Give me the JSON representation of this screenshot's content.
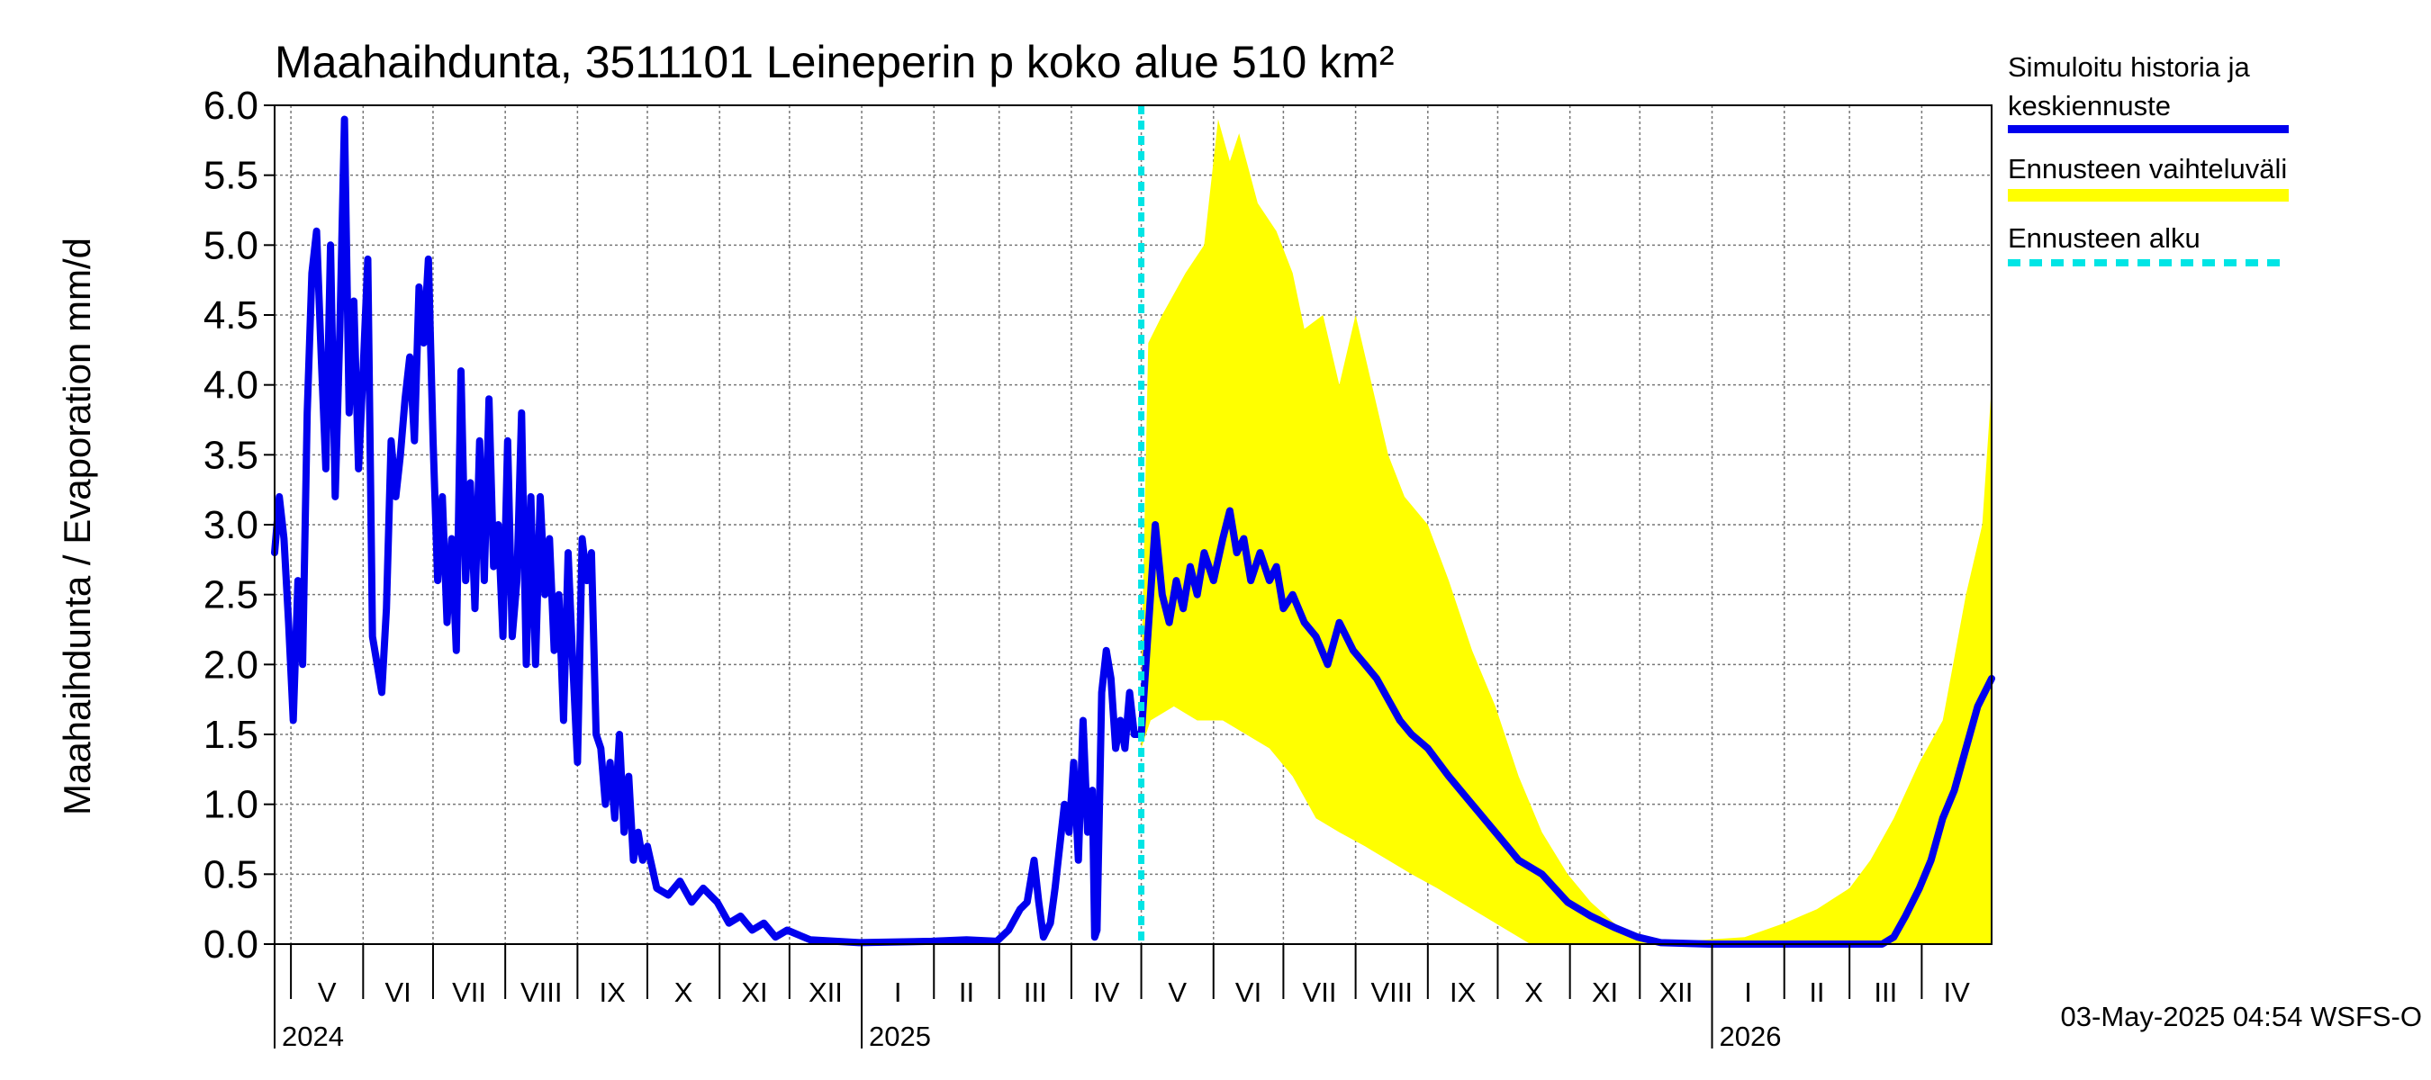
{
  "chart_data": {
    "type": "line",
    "title": "Maahaihdunta, 3511101 Leineperin p koko alue 510 km²",
    "ylabel": "Maahaihdunta / Evaporation   mm/d",
    "ylim": [
      0,
      6
    ],
    "yticks": [
      "0.0",
      "0.5",
      "1.0",
      "1.5",
      "2.0",
      "2.5",
      "3.0",
      "3.5",
      "4.0",
      "4.5",
      "5.0",
      "5.5",
      "6.0"
    ],
    "xlim": [
      "2024-04-24",
      "2026-05-01"
    ],
    "month_labels": [
      {
        "label": "V",
        "start": "2024-05-01"
      },
      {
        "label": "VI",
        "start": "2024-06-01"
      },
      {
        "label": "VII",
        "start": "2024-07-01"
      },
      {
        "label": "VIII",
        "start": "2024-08-01"
      },
      {
        "label": "IX",
        "start": "2024-09-01"
      },
      {
        "label": "X",
        "start": "2024-10-01"
      },
      {
        "label": "XI",
        "start": "2024-11-01"
      },
      {
        "label": "XII",
        "start": "2024-12-01"
      },
      {
        "label": "I",
        "start": "2025-01-01"
      },
      {
        "label": "II",
        "start": "2025-02-01"
      },
      {
        "label": "III",
        "start": "2025-03-01"
      },
      {
        "label": "IV",
        "start": "2025-04-01"
      },
      {
        "label": "V",
        "start": "2025-05-01"
      },
      {
        "label": "VI",
        "start": "2025-06-01"
      },
      {
        "label": "VII",
        "start": "2025-07-01"
      },
      {
        "label": "VIII",
        "start": "2025-08-01"
      },
      {
        "label": "IX",
        "start": "2025-09-01"
      },
      {
        "label": "X",
        "start": "2025-10-01"
      },
      {
        "label": "XI",
        "start": "2025-11-01"
      },
      {
        "label": "XII",
        "start": "2025-12-01"
      },
      {
        "label": "I",
        "start": "2026-01-01"
      },
      {
        "label": "II",
        "start": "2026-02-01"
      },
      {
        "label": "III",
        "start": "2026-03-01"
      },
      {
        "label": "IV",
        "start": "2026-04-01"
      }
    ],
    "year_labels": [
      {
        "label": "2024",
        "date": "2024-04-24"
      },
      {
        "label": "2025",
        "date": "2025-01-01"
      },
      {
        "label": "2026",
        "date": "2026-01-01"
      }
    ],
    "forecast_start": "2025-05-01",
    "grid": true,
    "legend_position": "right",
    "series": [
      {
        "name": "Simuloitu historia ja keskiennuste",
        "color": "#0000ee",
        "points": [
          [
            "2024-04-24",
            2.8
          ],
          [
            "2024-04-26",
            3.2
          ],
          [
            "2024-04-28",
            2.9
          ],
          [
            "2024-04-30",
            2.3
          ],
          [
            "2024-05-02",
            1.6
          ],
          [
            "2024-05-04",
            2.6
          ],
          [
            "2024-05-06",
            2.0
          ],
          [
            "2024-05-08",
            3.8
          ],
          [
            "2024-05-10",
            4.8
          ],
          [
            "2024-05-12",
            5.1
          ],
          [
            "2024-05-14",
            4.2
          ],
          [
            "2024-05-16",
            3.4
          ],
          [
            "2024-05-18",
            5.0
          ],
          [
            "2024-05-20",
            3.2
          ],
          [
            "2024-05-22",
            4.4
          ],
          [
            "2024-05-24",
            5.9
          ],
          [
            "2024-05-26",
            3.8
          ],
          [
            "2024-05-28",
            4.6
          ],
          [
            "2024-05-30",
            3.4
          ],
          [
            "2024-06-01",
            4.1
          ],
          [
            "2024-06-03",
            4.9
          ],
          [
            "2024-06-05",
            2.2
          ],
          [
            "2024-06-07",
            2.0
          ],
          [
            "2024-06-09",
            1.8
          ],
          [
            "2024-06-11",
            2.4
          ],
          [
            "2024-06-13",
            3.6
          ],
          [
            "2024-06-15",
            3.2
          ],
          [
            "2024-06-17",
            3.5
          ],
          [
            "2024-06-19",
            3.9
          ],
          [
            "2024-06-21",
            4.2
          ],
          [
            "2024-06-23",
            3.6
          ],
          [
            "2024-06-25",
            4.7
          ],
          [
            "2024-06-27",
            4.3
          ],
          [
            "2024-06-29",
            4.9
          ],
          [
            "2024-07-01",
            3.6
          ],
          [
            "2024-07-03",
            2.6
          ],
          [
            "2024-07-05",
            3.2
          ],
          [
            "2024-07-07",
            2.3
          ],
          [
            "2024-07-09",
            2.9
          ],
          [
            "2024-07-11",
            2.1
          ],
          [
            "2024-07-13",
            4.1
          ],
          [
            "2024-07-15",
            2.6
          ],
          [
            "2024-07-17",
            3.3
          ],
          [
            "2024-07-19",
            2.4
          ],
          [
            "2024-07-21",
            3.6
          ],
          [
            "2024-07-23",
            2.6
          ],
          [
            "2024-07-25",
            3.9
          ],
          [
            "2024-07-27",
            2.7
          ],
          [
            "2024-07-29",
            3.0
          ],
          [
            "2024-07-31",
            2.2
          ],
          [
            "2024-08-02",
            3.6
          ],
          [
            "2024-08-04",
            2.2
          ],
          [
            "2024-08-06",
            2.6
          ],
          [
            "2024-08-08",
            3.8
          ],
          [
            "2024-08-10",
            2.0
          ],
          [
            "2024-08-12",
            3.2
          ],
          [
            "2024-08-14",
            2.0
          ],
          [
            "2024-08-16",
            3.2
          ],
          [
            "2024-08-18",
            2.5
          ],
          [
            "2024-08-20",
            2.9
          ],
          [
            "2024-08-22",
            2.1
          ],
          [
            "2024-08-24",
            2.5
          ],
          [
            "2024-08-26",
            1.6
          ],
          [
            "2024-08-28",
            2.8
          ],
          [
            "2024-08-30",
            2.0
          ],
          [
            "2024-09-01",
            1.3
          ],
          [
            "2024-09-03",
            2.9
          ],
          [
            "2024-09-05",
            2.6
          ],
          [
            "2024-09-07",
            2.8
          ],
          [
            "2024-09-09",
            1.5
          ],
          [
            "2024-09-11",
            1.4
          ],
          [
            "2024-09-13",
            1.0
          ],
          [
            "2024-09-15",
            1.3
          ],
          [
            "2024-09-17",
            0.9
          ],
          [
            "2024-09-19",
            1.5
          ],
          [
            "2024-09-21",
            0.8
          ],
          [
            "2024-09-23",
            1.2
          ],
          [
            "2024-09-25",
            0.6
          ],
          [
            "2024-09-27",
            0.8
          ],
          [
            "2024-09-29",
            0.6
          ],
          [
            "2024-10-01",
            0.7
          ],
          [
            "2024-10-05",
            0.4
          ],
          [
            "2024-10-10",
            0.35
          ],
          [
            "2024-10-15",
            0.45
          ],
          [
            "2024-10-20",
            0.3
          ],
          [
            "2024-10-25",
            0.4
          ],
          [
            "2024-10-31",
            0.3
          ],
          [
            "2024-11-05",
            0.15
          ],
          [
            "2024-11-10",
            0.2
          ],
          [
            "2024-11-15",
            0.1
          ],
          [
            "2024-11-20",
            0.15
          ],
          [
            "2024-11-25",
            0.05
          ],
          [
            "2024-11-30",
            0.1
          ],
          [
            "2024-12-10",
            0.03
          ],
          [
            "2024-12-31",
            0.01
          ],
          [
            "2025-01-31",
            0.02
          ],
          [
            "2025-02-15",
            0.03
          ],
          [
            "2025-02-28",
            0.02
          ],
          [
            "2025-03-05",
            0.1
          ],
          [
            "2025-03-10",
            0.25
          ],
          [
            "2025-03-13",
            0.3
          ],
          [
            "2025-03-16",
            0.6
          ],
          [
            "2025-03-18",
            0.3
          ],
          [
            "2025-03-20",
            0.05
          ],
          [
            "2025-03-23",
            0.15
          ],
          [
            "2025-03-25",
            0.4
          ],
          [
            "2025-03-27",
            0.7
          ],
          [
            "2025-03-29",
            1.0
          ],
          [
            "2025-03-31",
            0.8
          ],
          [
            "2025-04-02",
            1.3
          ],
          [
            "2025-04-04",
            0.6
          ],
          [
            "2025-04-06",
            1.6
          ],
          [
            "2025-04-08",
            0.8
          ],
          [
            "2025-04-10",
            1.1
          ],
          [
            "2025-04-11",
            0.05
          ],
          [
            "2025-04-12",
            0.1
          ],
          [
            "2025-04-14",
            1.8
          ],
          [
            "2025-04-16",
            2.1
          ],
          [
            "2025-04-18",
            1.9
          ],
          [
            "2025-04-20",
            1.4
          ],
          [
            "2025-04-22",
            1.6
          ],
          [
            "2025-04-24",
            1.4
          ],
          [
            "2025-04-26",
            1.8
          ],
          [
            "2025-04-28",
            1.5
          ],
          [
            "2025-05-01",
            1.5
          ]
        ]
      },
      {
        "name": "Keskiennuste",
        "color": "#0000ee",
        "points": [
          [
            "2025-05-01",
            1.5
          ],
          [
            "2025-05-03",
            2.0
          ],
          [
            "2025-05-05",
            2.5
          ],
          [
            "2025-05-07",
            3.0
          ],
          [
            "2025-05-10",
            2.5
          ],
          [
            "2025-05-13",
            2.3
          ],
          [
            "2025-05-16",
            2.6
          ],
          [
            "2025-05-19",
            2.4
          ],
          [
            "2025-05-22",
            2.7
          ],
          [
            "2025-05-25",
            2.5
          ],
          [
            "2025-05-28",
            2.8
          ],
          [
            "2025-06-01",
            2.6
          ],
          [
            "2025-06-05",
            2.9
          ],
          [
            "2025-06-08",
            3.1
          ],
          [
            "2025-06-11",
            2.8
          ],
          [
            "2025-06-14",
            2.9
          ],
          [
            "2025-06-17",
            2.6
          ],
          [
            "2025-06-21",
            2.8
          ],
          [
            "2025-06-25",
            2.6
          ],
          [
            "2025-06-28",
            2.7
          ],
          [
            "2025-07-01",
            2.4
          ],
          [
            "2025-07-05",
            2.5
          ],
          [
            "2025-07-10",
            2.3
          ],
          [
            "2025-07-15",
            2.2
          ],
          [
            "2025-07-20",
            2.0
          ],
          [
            "2025-07-25",
            2.3
          ],
          [
            "2025-07-31",
            2.1
          ],
          [
            "2025-08-05",
            2.0
          ],
          [
            "2025-08-10",
            1.9
          ],
          [
            "2025-08-15",
            1.75
          ],
          [
            "2025-08-20",
            1.6
          ],
          [
            "2025-08-25",
            1.5
          ],
          [
            "2025-09-01",
            1.4
          ],
          [
            "2025-09-10",
            1.2
          ],
          [
            "2025-09-20",
            1.0
          ],
          [
            "2025-09-30",
            0.8
          ],
          [
            "2025-10-10",
            0.6
          ],
          [
            "2025-10-20",
            0.5
          ],
          [
            "2025-10-31",
            0.3
          ],
          [
            "2025-11-10",
            0.2
          ],
          [
            "2025-11-20",
            0.12
          ],
          [
            "2025-11-30",
            0.05
          ],
          [
            "2025-12-10",
            0.01
          ],
          [
            "2025-12-31",
            0.0
          ],
          [
            "2026-02-28",
            0.0
          ],
          [
            "2026-03-15",
            0.0
          ],
          [
            "2026-03-20",
            0.05
          ],
          [
            "2026-03-25",
            0.2
          ],
          [
            "2026-03-31",
            0.4
          ],
          [
            "2026-04-05",
            0.6
          ],
          [
            "2026-04-10",
            0.9
          ],
          [
            "2026-04-15",
            1.1
          ],
          [
            "2026-04-20",
            1.4
          ],
          [
            "2026-04-25",
            1.7
          ],
          [
            "2026-05-01",
            1.9
          ]
        ]
      }
    ],
    "band": {
      "name": "Ennusteen vaihteluväli",
      "color": "#ffff00",
      "upper": [
        [
          "2025-05-01",
          1.9
        ],
        [
          "2025-05-04",
          4.3
        ],
        [
          "2025-05-10",
          4.5
        ],
        [
          "2025-05-20",
          4.8
        ],
        [
          "2025-05-28",
          5.0
        ],
        [
          "2025-06-03",
          5.9
        ],
        [
          "2025-06-08",
          5.6
        ],
        [
          "2025-06-12",
          5.8
        ],
        [
          "2025-06-20",
          5.3
        ],
        [
          "2025-06-28",
          5.1
        ],
        [
          "2025-07-05",
          4.8
        ],
        [
          "2025-07-10",
          4.4
        ],
        [
          "2025-07-18",
          4.5
        ],
        [
          "2025-07-25",
          4.0
        ],
        [
          "2025-08-01",
          4.5
        ],
        [
          "2025-08-08",
          4.0
        ],
        [
          "2025-08-15",
          3.5
        ],
        [
          "2025-08-22",
          3.2
        ],
        [
          "2025-09-01",
          3.0
        ],
        [
          "2025-09-10",
          2.6
        ],
        [
          "2025-09-20",
          2.1
        ],
        [
          "2025-09-30",
          1.7
        ],
        [
          "2025-10-10",
          1.2
        ],
        [
          "2025-10-20",
          0.8
        ],
        [
          "2025-10-31",
          0.5
        ],
        [
          "2025-11-10",
          0.3
        ],
        [
          "2025-11-20",
          0.15
        ],
        [
          "2025-11-30",
          0.05
        ],
        [
          "2025-12-20",
          0.02
        ],
        [
          "2026-01-15",
          0.05
        ],
        [
          "2026-02-01",
          0.15
        ],
        [
          "2026-02-15",
          0.25
        ],
        [
          "2026-03-01",
          0.4
        ],
        [
          "2026-03-10",
          0.6
        ],
        [
          "2026-03-20",
          0.9
        ],
        [
          "2026-03-31",
          1.3
        ],
        [
          "2026-04-10",
          1.6
        ],
        [
          "2026-04-20",
          2.5
        ],
        [
          "2026-04-27",
          3.0
        ],
        [
          "2026-05-01",
          4.0
        ]
      ],
      "lower": [
        [
          "2025-05-01",
          1.4
        ],
        [
          "2025-05-05",
          1.6
        ],
        [
          "2025-05-15",
          1.7
        ],
        [
          "2025-05-25",
          1.6
        ],
        [
          "2025-06-05",
          1.6
        ],
        [
          "2025-06-15",
          1.5
        ],
        [
          "2025-06-25",
          1.4
        ],
        [
          "2025-07-05",
          1.2
        ],
        [
          "2025-07-15",
          0.9
        ],
        [
          "2025-07-25",
          0.8
        ],
        [
          "2025-08-05",
          0.7
        ],
        [
          "2025-08-15",
          0.6
        ],
        [
          "2025-08-25",
          0.5
        ],
        [
          "2025-09-05",
          0.4
        ],
        [
          "2025-09-15",
          0.3
        ],
        [
          "2025-09-25",
          0.2
        ],
        [
          "2025-10-05",
          0.1
        ],
        [
          "2025-10-15",
          0.0
        ],
        [
          "2026-05-01",
          0.0
        ]
      ]
    },
    "legend": [
      {
        "label": "Simuloitu historia ja keskiennuste",
        "color": "#0000ee",
        "style": "solid"
      },
      {
        "label": "Ennusteen vaihteluväli",
        "color": "#ffff00",
        "style": "band"
      },
      {
        "label": "Ennusteen alku",
        "color": "#00e5e5",
        "style": "dashed"
      }
    ],
    "footer": "03-May-2025 04:54 WSFS-O"
  }
}
